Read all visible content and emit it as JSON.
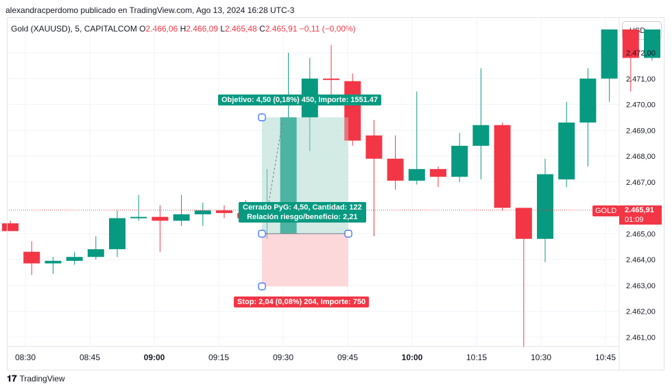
{
  "header": {
    "attribution": "alexandracperdomo publicado en TradingView.com, Ago 13, 2024 16:28 UTC-3"
  },
  "symbol": {
    "name": "Gold (XAUUSD), 5, CAPITALCOM",
    "o_label": "O",
    "o": "2.466,06",
    "h_label": "H",
    "h": "2.466,09",
    "l_label": "L",
    "l": "2.465,48",
    "c_label": "C",
    "c": "2.465,91",
    "change": "−0,11 (−0,00%)"
  },
  "currency": "USD",
  "position": {
    "target_label": "Objetivo: 4,50 (0,18%) 450, Importe: 1551.47",
    "stop_label": "Stop: 2,04 (0,08%) 204, Importe: 750",
    "pnl_line1": "Cerrado PyG: 4,50, Cantidad: 122",
    "pnl_line2": "Relación riesgo/beneficio: 2,21",
    "entry": 2465.0,
    "target": 2469.5,
    "stop": 2462.96
  },
  "last_price": {
    "symbol": "GOLD",
    "price": "2.465,91",
    "countdown": "01:09"
  },
  "footer": {
    "logo": "𝟏𝟕",
    "brand": "TradingView"
  },
  "colors": {
    "up": "#089981",
    "down": "#f23645",
    "target_zone": "#cfe9e3",
    "stop_zone": "#fbd5d8"
  },
  "chart_data": {
    "type": "candlestick",
    "y_ticks": [
      "2.472,00",
      "2.471,00",
      "2.470,00",
      "2.469,00",
      "2.468,00",
      "2.467,00",
      "2.465,00",
      "2.464,00",
      "2.463,00",
      "2.462,00",
      "2.461,00"
    ],
    "y_tick_values": [
      2472,
      2471,
      2470,
      2469,
      2468,
      2467,
      2465,
      2464,
      2463,
      2462,
      2461
    ],
    "x_ticks": [
      "08:30",
      "08:45",
      "09:00",
      "09:15",
      "09:30",
      "09:45",
      "10:00",
      "10:15",
      "10:30",
      "10:45"
    ],
    "x_ticks_bold": [
      "09:00",
      "10:00"
    ],
    "ylim": [
      2460.6,
      2472.7
    ],
    "current_price": 2465.91,
    "candles": [
      {
        "o": 2465.4,
        "h": 2465.5,
        "l": 2465.1,
        "c": 2465.1
      },
      {
        "o": 2464.3,
        "h": 2464.7,
        "l": 2463.4,
        "c": 2463.85
      },
      {
        "o": 2463.85,
        "h": 2464.1,
        "l": 2463.45,
        "c": 2463.95
      },
      {
        "o": 2463.95,
        "h": 2464.3,
        "l": 2463.8,
        "c": 2464.1
      },
      {
        "o": 2464.1,
        "h": 2464.9,
        "l": 2464.0,
        "c": 2464.4
      },
      {
        "o": 2464.4,
        "h": 2465.9,
        "l": 2464.1,
        "c": 2465.6
      },
      {
        "o": 2465.6,
        "h": 2466.5,
        "l": 2465.5,
        "c": 2465.65
      },
      {
        "o": 2465.65,
        "h": 2466.1,
        "l": 2464.3,
        "c": 2465.5
      },
      {
        "o": 2465.5,
        "h": 2466.5,
        "l": 2465.3,
        "c": 2465.75
      },
      {
        "o": 2465.75,
        "h": 2466.2,
        "l": 2465.3,
        "c": 2465.9
      },
      {
        "o": 2465.9,
        "h": 2466.1,
        "l": 2465.6,
        "c": 2465.8
      },
      {
        "o": 2465.8,
        "h": 2466.3,
        "l": 2465.6,
        "c": 2465.6
      },
      {
        "o": 2465.6,
        "h": 2467.5,
        "l": 2464.8,
        "c": 2465.8
      },
      {
        "o": 2465.0,
        "h": 2472.0,
        "l": 2465.0,
        "c": 2469.5
      },
      {
        "o": 2469.5,
        "h": 2471.8,
        "l": 2468.2,
        "c": 2471.0
      },
      {
        "o": 2471.0,
        "h": 2472.3,
        "l": 2470.1,
        "c": 2470.95
      },
      {
        "o": 2470.9,
        "h": 2471.2,
        "l": 2468.4,
        "c": 2468.6
      },
      {
        "o": 2468.8,
        "h": 2469.4,
        "l": 2464.9,
        "c": 2467.9
      },
      {
        "o": 2467.9,
        "h": 2468.8,
        "l": 2466.7,
        "c": 2467.05
      },
      {
        "o": 2467.05,
        "h": 2470.5,
        "l": 2466.9,
        "c": 2467.5
      },
      {
        "o": 2467.5,
        "h": 2467.6,
        "l": 2466.8,
        "c": 2467.2
      },
      {
        "o": 2467.2,
        "h": 2468.9,
        "l": 2467.0,
        "c": 2468.4
      },
      {
        "o": 2468.4,
        "h": 2471.4,
        "l": 2467.1,
        "c": 2469.2
      },
      {
        "o": 2469.2,
        "h": 2469.3,
        "l": 2465.9,
        "c": 2466.0
      },
      {
        "o": 2466.0,
        "h": 2466.0,
        "l": 2460.6,
        "c": 2464.8
      },
      {
        "o": 2464.8,
        "h": 2467.9,
        "l": 2463.9,
        "c": 2467.3
      },
      {
        "o": 2467.1,
        "h": 2470.1,
        "l": 2466.8,
        "c": 2469.3
      },
      {
        "o": 2469.3,
        "h": 2471.4,
        "l": 2467.6,
        "c": 2471.0
      },
      {
        "o": 2471.0,
        "h": 2472.9,
        "l": 2470.1,
        "c": 2472.9
      },
      {
        "o": 2472.9,
        "h": 2472.9,
        "l": 2470.5,
        "c": 2471.8
      },
      {
        "o": 2471.8,
        "h": 2472.9,
        "l": 2471.7,
        "c": 2472.9
      }
    ]
  }
}
